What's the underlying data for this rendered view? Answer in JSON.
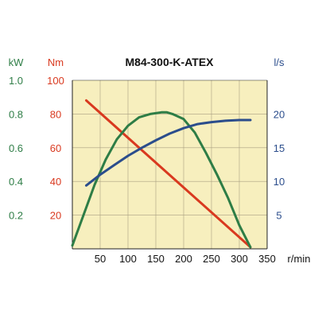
{
  "chart_data": {
    "type": "line",
    "title": "M84-300-K-ATEX",
    "x_unit": "r/min",
    "x_ticks": [
      50,
      100,
      150,
      200,
      250,
      300,
      350
    ],
    "xlim": [
      0,
      350
    ],
    "grid": true,
    "axes": {
      "power": {
        "unit": "kW",
        "ticks": [
          "0.2",
          "0.4",
          "0.6",
          "0.8",
          "1.0"
        ],
        "range": [
          0,
          1.0
        ],
        "color": "#2e7d46"
      },
      "torque": {
        "unit": "Nm",
        "ticks": [
          "20",
          "40",
          "60",
          "80",
          "100"
        ],
        "range": [
          0,
          100
        ],
        "color": "#d9391f"
      },
      "flow": {
        "unit": "l/s",
        "ticks": [
          "5",
          "10",
          "15",
          "20"
        ],
        "range": [
          0,
          25
        ],
        "color": "#2b4d8c"
      }
    },
    "series": [
      {
        "axis": "torque",
        "color": "#d9391f",
        "x": [
          25,
          320
        ],
        "y": [
          88,
          1
        ]
      },
      {
        "axis": "power",
        "color": "#2e7d46",
        "x": [
          0,
          20,
          40,
          60,
          80,
          100,
          120,
          140,
          160,
          170,
          180,
          200,
          220,
          240,
          260,
          280,
          300,
          320
        ],
        "y": [
          0.02,
          0.2,
          0.38,
          0.53,
          0.65,
          0.73,
          0.78,
          0.8,
          0.81,
          0.81,
          0.8,
          0.77,
          0.69,
          0.57,
          0.44,
          0.3,
          0.14,
          0.01
        ]
      },
      {
        "axis": "flow",
        "color": "#2b4d8c",
        "x": [
          25,
          50,
          75,
          100,
          125,
          150,
          175,
          200,
          225,
          250,
          275,
          300,
          320
        ],
        "y": [
          9.4,
          11.0,
          12.4,
          13.8,
          15.0,
          16.1,
          17.1,
          17.9,
          18.5,
          18.8,
          19.0,
          19.1,
          19.1
        ]
      }
    ]
  },
  "colors": {
    "plot_bg": "#f7efbe",
    "grid": "#a89f80",
    "axis": "#222222"
  }
}
